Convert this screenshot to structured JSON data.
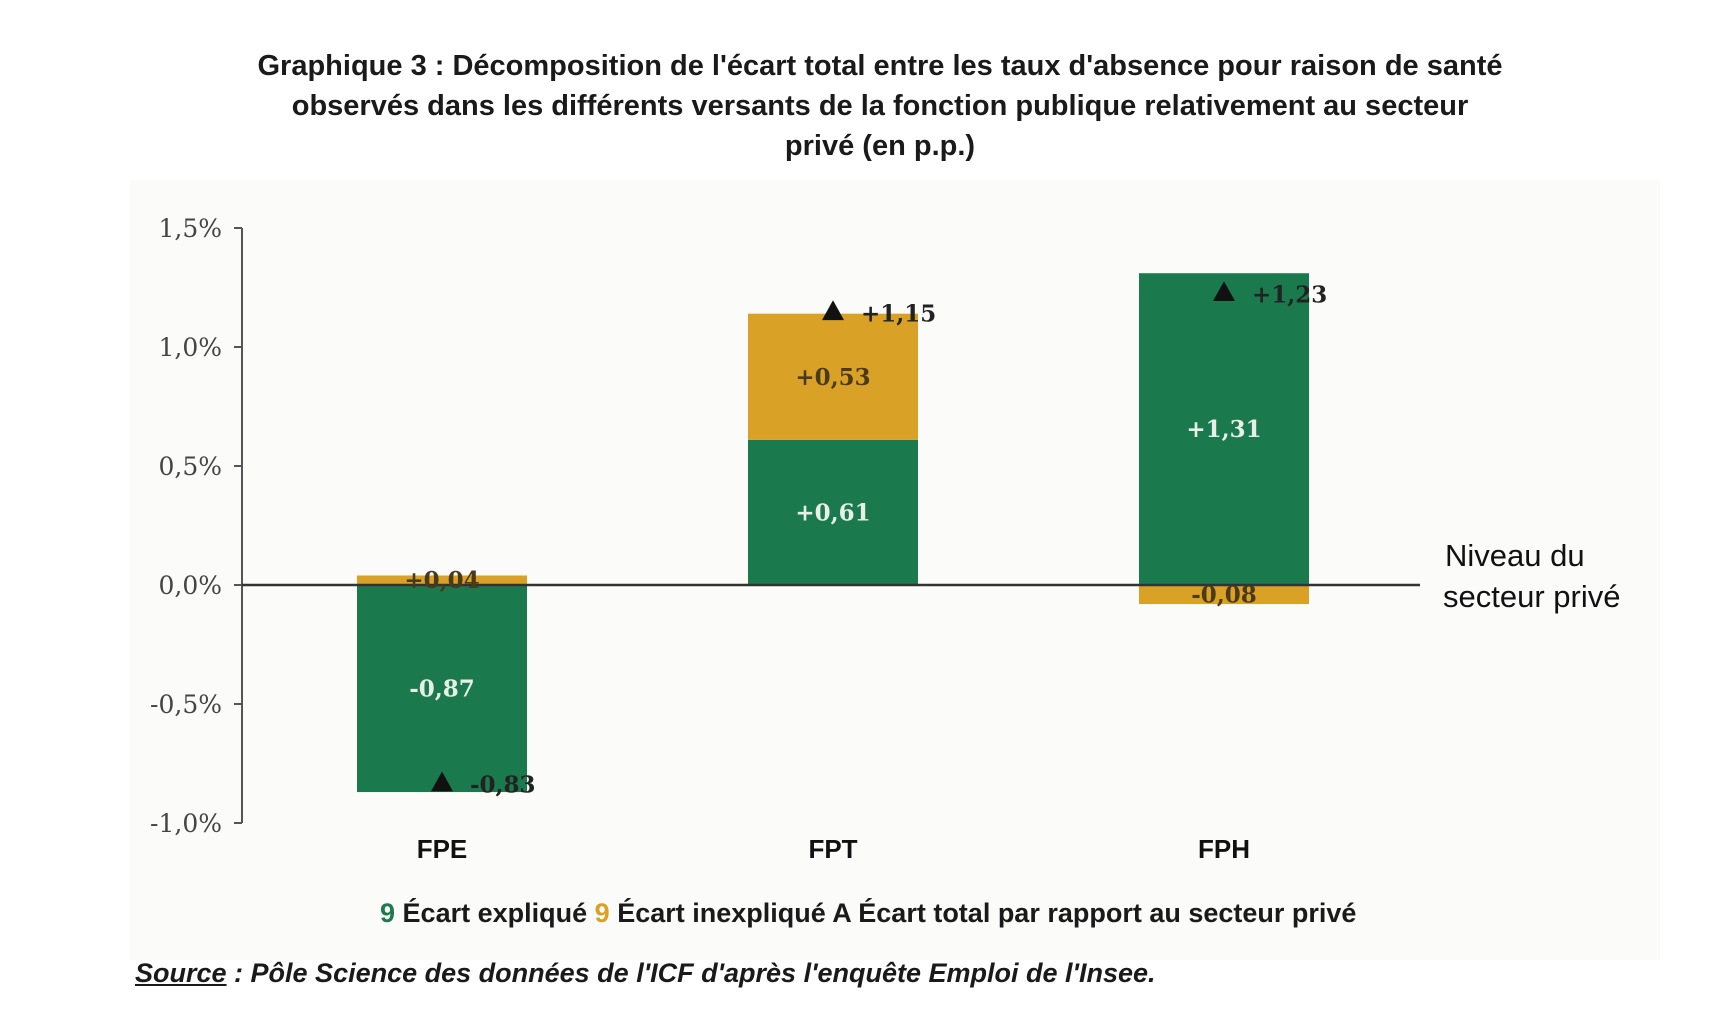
{
  "title_lines": [
    "Graphique 3 : Décomposition de l'écart total entre les taux d'absence pour raison de santé",
    "observés dans les différents versants de la fonction publique relativement au secteur",
    "privé (en p.p.)"
  ],
  "chart_data": {
    "type": "bar",
    "stacked": true,
    "categories": [
      "FPE",
      "FPT",
      "FPH"
    ],
    "series": [
      {
        "name": "Écart expliqué",
        "values": [
          -0.87,
          0.61,
          1.31
        ],
        "labels": [
          "-0,87",
          "+0,61",
          "+1,31"
        ],
        "color": "#1b7a4d"
      },
      {
        "name": "Écart inexpliqué",
        "values": [
          0.04,
          0.53,
          -0.08
        ],
        "labels": [
          "+0,04",
          "+0,53",
          "-0,08"
        ],
        "color": "#d9a126"
      }
    ],
    "markers": {
      "name": "Écart total par rapport au secteur privé",
      "values": [
        -0.83,
        1.15,
        1.23
      ],
      "labels": [
        "-0,83",
        "+1,15",
        "+1,23"
      ]
    },
    "ylim": [
      -1.0,
      1.5
    ],
    "yticks": [
      1.5,
      1.0,
      0.5,
      0.0,
      -0.5,
      -1.0
    ],
    "ytick_labels": [
      "1,5%",
      "1,0%",
      "0,5%",
      "0,0%",
      "-0,5%",
      "-1,0%"
    ],
    "reference_line": {
      "value": 0.0,
      "label_lines": [
        "Niveau du",
        "secteur privé"
      ]
    }
  },
  "legend": {
    "explained_symbol": "9",
    "explained_label": "Écart expliqué",
    "unexplained_symbol": "9",
    "unexplained_label": "Écart inexpliqué",
    "total_symbol": "A",
    "total_label": "Écart total par rapport au secteur privé"
  },
  "source": {
    "label": "Source",
    "text": " : Pôle Science des données de l'ICF d'après l'enquête Emploi de l'Insee."
  }
}
